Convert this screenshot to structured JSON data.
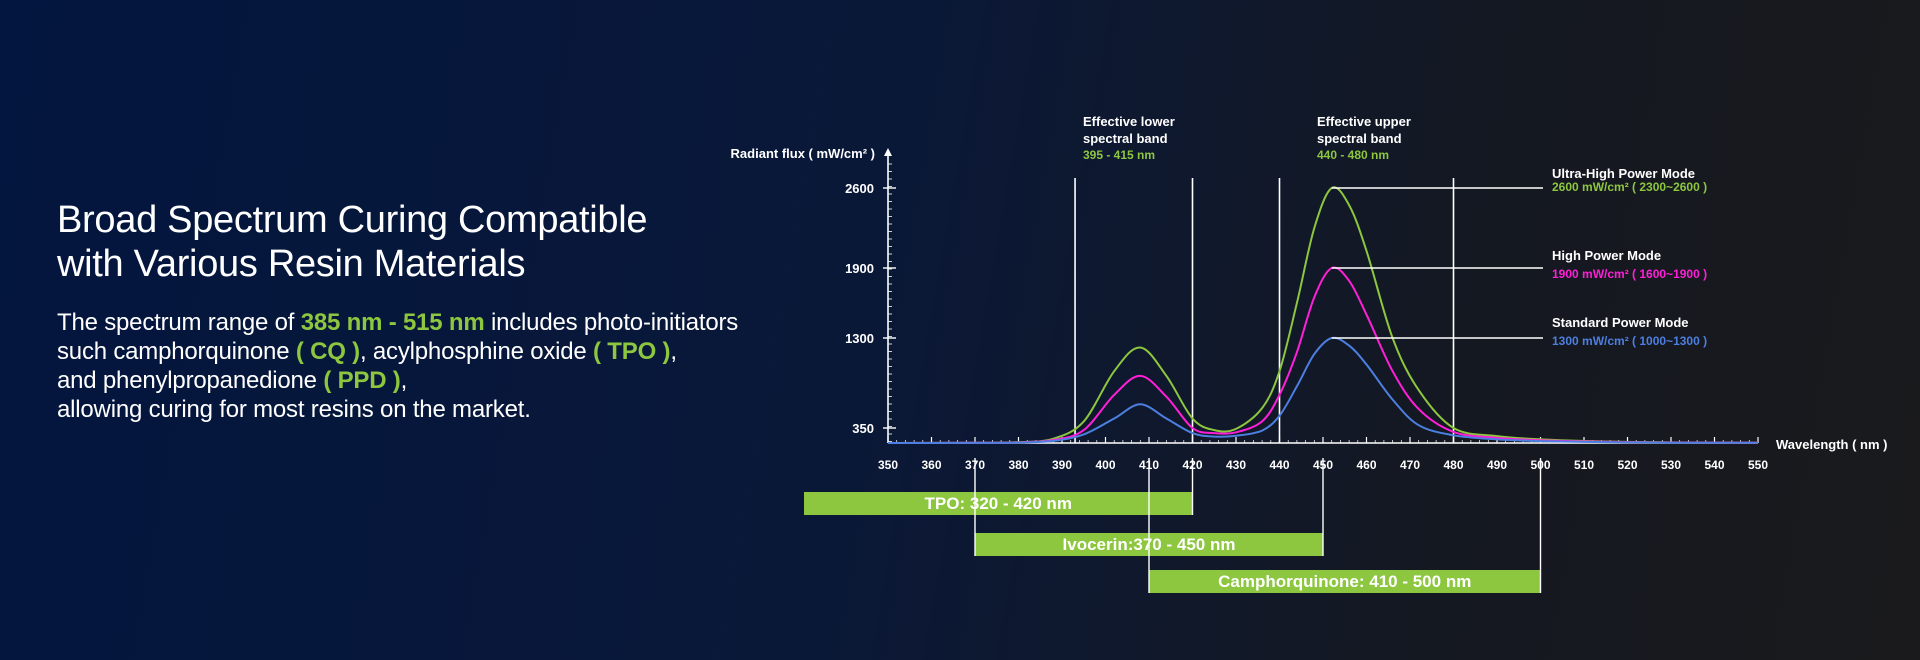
{
  "headline": {
    "line1": "Broad Spectrum Curing Compatible",
    "line2": "with Various Resin Materials"
  },
  "description": {
    "p1_pre": "The spectrum range of ",
    "p1_highlight": "385 nm - 515 nm",
    "p1_post": " includes photo-initiators",
    "p2_pre": "such camphorquinone ",
    "p2_cq": "( CQ )",
    "p2_mid": ", acylphosphine oxide ",
    "p2_tpo": "( TPO )",
    "p2_end": ",",
    "p3_pre": "and phenylpropanedione ",
    "p3_ppd": "( PPD )",
    "p3_end": ",",
    "p4": "allowing curing for most resins on the market."
  },
  "colors": {
    "green": "#8dc63f",
    "magenta": "#ff1fd8",
    "blue": "#4d7fe0",
    "white": "#ffffff"
  },
  "chart_data": {
    "type": "line",
    "ylabel": "Radiant flux ( mW/cm² )",
    "xlabel": "Wavelength ( nm )",
    "xlim": [
      350,
      550
    ],
    "ylim": [
      0,
      2800
    ],
    "x_ticks": [
      350,
      360,
      370,
      380,
      390,
      400,
      410,
      420,
      430,
      440,
      450,
      460,
      470,
      480,
      490,
      500,
      510,
      520,
      530,
      540,
      550
    ],
    "y_ticks": [
      350,
      1300,
      1900,
      2600
    ],
    "vertical_lines": [
      393,
      420,
      440,
      480
    ],
    "bands": [
      {
        "title_line1": "Effective lower",
        "title_line2": "spectral band",
        "range": "395 - 415 nm"
      },
      {
        "title_line1": "Effective upper",
        "title_line2": "spectral band",
        "range": "440 - 480 nm"
      }
    ],
    "series": [
      {
        "name": "Ultra-High Power Mode",
        "detail": "2600 mW/cm² ( 2300~2600 )",
        "color": "#8dc63f",
        "x": [
          350,
          370,
          380,
          388,
          395,
          402,
          408,
          414,
          420,
          425,
          430,
          436,
          440,
          444,
          448,
          452,
          456,
          460,
          466,
          472,
          480,
          490,
          500,
          515,
          530,
          550
        ],
        "y": [
          0,
          5,
          20,
          100,
          420,
          950,
          1200,
          900,
          450,
          300,
          330,
          560,
          950,
          1600,
          2250,
          2600,
          2450,
          2050,
          1300,
          750,
          350,
          160,
          85,
          35,
          15,
          10
        ]
      },
      {
        "name": "High Power Mode",
        "detail": "1900 mW/cm² ( 1600~1900 )",
        "color": "#ff1fd8",
        "x": [
          350,
          370,
          380,
          388,
          395,
          402,
          408,
          414,
          420,
          425,
          430,
          436,
          440,
          444,
          448,
          452,
          456,
          460,
          466,
          472,
          480,
          490,
          500,
          515,
          530,
          550
        ],
        "y": [
          0,
          4,
          15,
          70,
          300,
          700,
          900,
          680,
          350,
          230,
          250,
          420,
          700,
          1150,
          1650,
          1900,
          1790,
          1500,
          950,
          550,
          260,
          120,
          65,
          28,
          12,
          8
        ]
      },
      {
        "name": "Standard Power Mode",
        "detail": "1300 mW/cm² ( 1000~1300 )",
        "color": "#4d7fe0",
        "x": [
          350,
          370,
          380,
          388,
          395,
          402,
          408,
          414,
          420,
          425,
          430,
          436,
          440,
          444,
          448,
          452,
          456,
          460,
          466,
          472,
          480,
          490,
          500,
          515,
          530,
          550
        ],
        "y": [
          0,
          3,
          10,
          50,
          200,
          450,
          600,
          450,
          230,
          150,
          170,
          290,
          480,
          790,
          1130,
          1300,
          1220,
          1020,
          650,
          380,
          180,
          85,
          45,
          20,
          8,
          5
        ]
      }
    ],
    "initiator_ranges": [
      {
        "label": "TPO: 320 - 420 nm",
        "start": 320,
        "end": 420
      },
      {
        "label": "Ivocerin:370 - 450 nm",
        "start": 370,
        "end": 450
      },
      {
        "label": "Camphorquinone: 410 - 500 nm",
        "start": 410,
        "end": 500
      }
    ]
  }
}
